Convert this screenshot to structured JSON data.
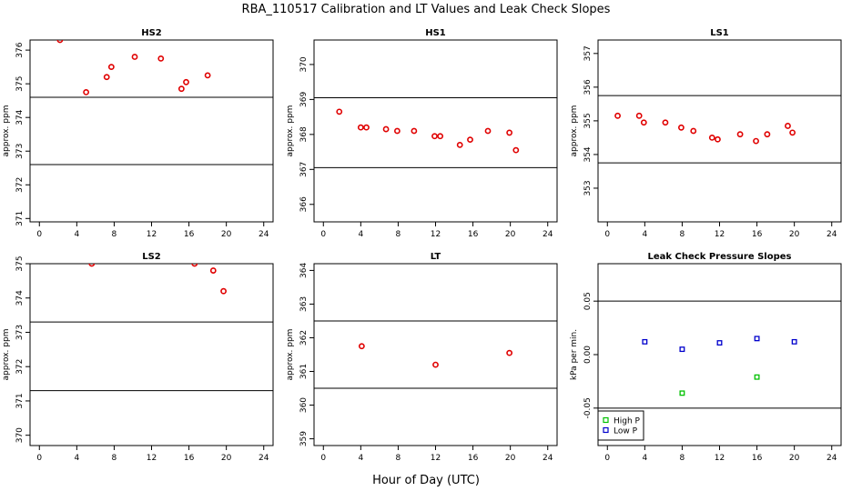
{
  "figure": {
    "title": "RBA_110517  Calibration and LT Values and Leak Check Slopes",
    "xlabel": "Hour of Day (UTC)"
  },
  "chart_data": [
    {
      "type": "scatter",
      "title": "HS2",
      "ylabel": "approx. ppm",
      "xlim": [
        -1,
        25
      ],
      "ylim": [
        370.9,
        376.3
      ],
      "xticks": [
        0,
        4,
        8,
        12,
        16,
        20,
        24
      ],
      "yticks": [
        371,
        372,
        373,
        374,
        375,
        376
      ],
      "hlines": [
        374.6,
        372.6
      ],
      "series": [
        {
          "name": "values",
          "color": "#e00000",
          "marker": "circle",
          "x": [
            2.2,
            5.0,
            7.2,
            7.7,
            10.2,
            13.0,
            15.2,
            15.7,
            18.0
          ],
          "y": [
            376.3,
            374.75,
            375.2,
            375.5,
            375.8,
            375.75,
            374.85,
            375.05,
            375.25
          ]
        }
      ]
    },
    {
      "type": "scatter",
      "title": "HS1",
      "ylabel": "approx. ppm",
      "xlim": [
        -1,
        25
      ],
      "ylim": [
        365.5,
        370.7
      ],
      "xticks": [
        0,
        4,
        8,
        12,
        16,
        20,
        24
      ],
      "yticks": [
        366,
        367,
        368,
        369,
        370
      ],
      "hlines": [
        369.05,
        367.05
      ],
      "series": [
        {
          "name": "values",
          "color": "#e00000",
          "marker": "circle",
          "x": [
            1.7,
            4.0,
            4.6,
            6.7,
            7.9,
            9.7,
            11.9,
            12.5,
            14.6,
            15.7,
            17.6,
            19.9,
            20.6
          ],
          "y": [
            368.65,
            368.2,
            368.2,
            368.15,
            368.1,
            368.1,
            367.95,
            367.95,
            367.7,
            367.85,
            368.1,
            368.05,
            367.55
          ]
        }
      ]
    },
    {
      "type": "scatter",
      "title": "LS1",
      "ylabel": "approx. ppm",
      "xlim": [
        -1,
        25
      ],
      "ylim": [
        352.0,
        357.4
      ],
      "xticks": [
        0,
        4,
        8,
        12,
        16,
        20,
        24
      ],
      "yticks": [
        353,
        354,
        355,
        356,
        357
      ],
      "hlines": [
        355.75,
        353.75
      ],
      "series": [
        {
          "name": "values",
          "color": "#e00000",
          "marker": "circle",
          "x": [
            1.1,
            3.4,
            3.9,
            6.2,
            7.9,
            9.2,
            11.2,
            11.8,
            14.2,
            15.9,
            17.1,
            19.3,
            19.8
          ],
          "y": [
            355.15,
            355.15,
            354.95,
            354.95,
            354.8,
            354.7,
            354.5,
            354.45,
            354.6,
            354.4,
            354.6,
            354.85,
            354.65
          ]
        }
      ]
    },
    {
      "type": "scatter",
      "title": "LS2",
      "ylabel": "approx. ppm",
      "xlim": [
        -1,
        25
      ],
      "ylim": [
        369.7,
        375.0
      ],
      "xticks": [
        0,
        4,
        8,
        12,
        16,
        20,
        24
      ],
      "yticks": [
        370,
        371,
        372,
        373,
        374,
        375
      ],
      "hlines": [
        373.3,
        371.3
      ],
      "series": [
        {
          "name": "values",
          "color": "#e00000",
          "marker": "circle",
          "x": [
            5.6,
            16.6,
            18.6,
            19.7
          ],
          "y": [
            375.0,
            375.0,
            374.8,
            374.2
          ]
        }
      ]
    },
    {
      "type": "scatter",
      "title": "LT",
      "ylabel": "approx. ppm",
      "xlim": [
        -1,
        25
      ],
      "ylim": [
        358.8,
        364.2
      ],
      "xticks": [
        0,
        4,
        8,
        12,
        16,
        20,
        24
      ],
      "yticks": [
        359,
        360,
        361,
        362,
        363,
        364
      ],
      "hlines": [
        362.5,
        360.5
      ],
      "series": [
        {
          "name": "values",
          "color": "#e00000",
          "marker": "circle",
          "x": [
            4.1,
            12.0,
            19.9
          ],
          "y": [
            361.75,
            361.2,
            361.55
          ]
        }
      ]
    },
    {
      "type": "scatter",
      "title": "Leak Check Pressure Slopes",
      "ylabel": "kPa per min.",
      "xlim": [
        -1,
        25
      ],
      "ylim": [
        -0.085,
        0.085
      ],
      "xticks": [
        0,
        4,
        8,
        12,
        16,
        20,
        24
      ],
      "yticks": [
        -0.05,
        0.0,
        0.05
      ],
      "ytick_labels": [
        "-0.05",
        "0.00",
        "0.05"
      ],
      "hlines": [
        0.05,
        -0.05
      ],
      "legend": {
        "position": "bottom-left",
        "entries": [
          "High P",
          "Low P"
        ]
      },
      "series": [
        {
          "name": "High P",
          "color": "#00c000",
          "marker": "square",
          "x": [
            8.0,
            16.0
          ],
          "y": [
            -0.036,
            -0.021
          ]
        },
        {
          "name": "Low P",
          "color": "#0000cc",
          "marker": "square",
          "x": [
            4.0,
            8.0,
            12.0,
            16.0,
            20.0
          ],
          "y": [
            0.012,
            0.005,
            0.011,
            0.015,
            0.012
          ]
        }
      ]
    }
  ]
}
